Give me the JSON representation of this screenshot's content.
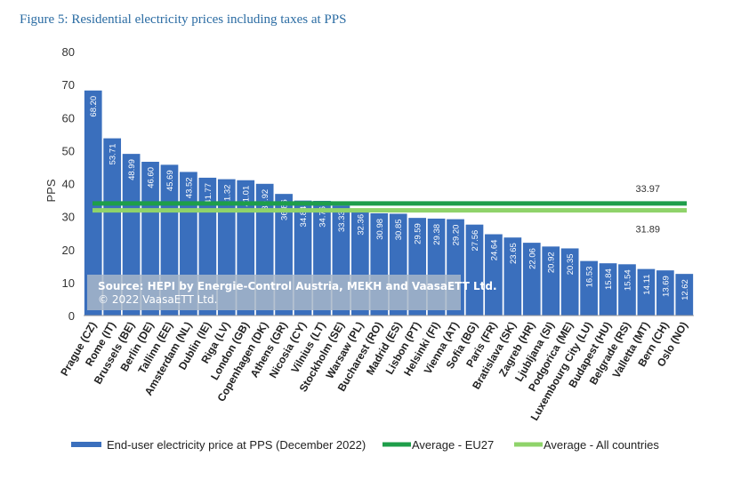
{
  "figure_title": "Figure 5: Residential electricity prices including taxes at PPS",
  "source": {
    "line1": "Source: HEPI by Energie-Control Austria, MEKH and VaasaETT Ltd.",
    "line2": "© 2022 VaasaETT Ltd."
  },
  "colors": {
    "bar": "#3a6fbd",
    "eu27_line": "#1e9e4a",
    "all_line": "#8fd36a",
    "source_box": "#a8b7c9"
  },
  "chart_data": {
    "type": "bar",
    "title": "",
    "xlabel": "",
    "ylabel": "PPS",
    "ylim": [
      0,
      80
    ],
    "yticks": [
      0,
      10,
      20,
      30,
      40,
      50,
      60,
      70,
      80
    ],
    "categories": [
      "Prague (CZ)",
      "Rome (IT)",
      "Brussels (BE)",
      "Berlin (DE)",
      "Tallinn (EE)",
      "Amsterdam (NL)",
      "Dublin (IE)",
      "Riga (LV)",
      "London (GB)",
      "Copenhagen (DK)",
      "Athens (GR)",
      "Nicosia (CY)",
      "Vilnius (LT)",
      "Stockholm (SE)",
      "Warsaw (PL)",
      "Bucharest (RO)",
      "Madrid (ES)",
      "Lisbon (PT)",
      "Helsinki (FI)",
      "Vienna (AT)",
      "Sofia (BG)",
      "Paris (FR)",
      "Bratislava (SK)",
      "Zagreb (HR)",
      "Ljubljana (SI)",
      "Podgorica (ME)",
      "Luxembourg City (LU)",
      "Budapest (HU)",
      "Belgrade (RS)",
      "Valletta (MT)",
      "Bern (CH)",
      "Oslo (NO)"
    ],
    "series": [
      {
        "name": "End-user electricity price at PPS (December 2022)",
        "values": [
          68.2,
          53.71,
          48.99,
          46.6,
          45.69,
          43.52,
          41.77,
          41.32,
          41.01,
          39.92,
          36.86,
          34.84,
          34.76,
          33.33,
          32.36,
          30.98,
          30.85,
          29.59,
          29.38,
          29.2,
          27.56,
          24.64,
          23.65,
          22.06,
          20.92,
          20.35,
          16.53,
          15.84,
          15.54,
          14.11,
          13.69,
          12.62
        ],
        "labels": [
          "68.20",
          "53.71",
          "48.99",
          "46.60",
          "45.69",
          "43.52",
          "41.77",
          "41.32",
          "41.01",
          "39.92",
          "36.86",
          "34.84",
          "34.76",
          "33.33",
          "32.36",
          "30.98",
          "30.85",
          "29.59",
          "29.38",
          "29.20",
          "27.56",
          "24.64",
          "23.65",
          "22.06",
          "20.92",
          "20.35",
          "16.53",
          "15.84",
          "15.54",
          "14.11",
          "13.69",
          "12.62"
        ]
      }
    ],
    "averages": [
      {
        "name": "Average - EU27",
        "value": 33.97,
        "label": "33.97"
      },
      {
        "name": "Average - All countries",
        "value": 31.89,
        "label": "31.89"
      }
    ],
    "legend_position": "bottom",
    "grid": false
  }
}
